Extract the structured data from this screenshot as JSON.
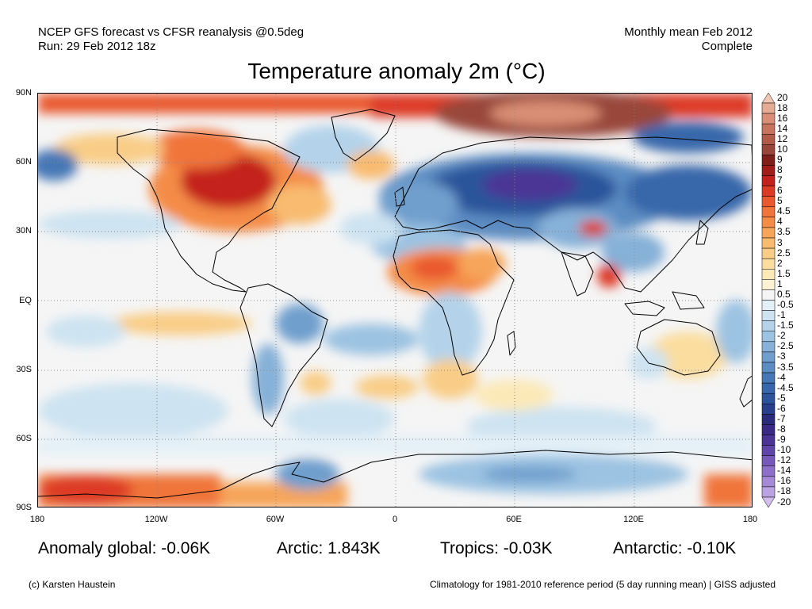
{
  "header": {
    "left_line1": "NCEP GFS forecast vs CFSR reanalysis @0.5deg",
    "left_line2": "Run: 29 Feb 2012 18z",
    "right_line1": "Monthly mean Feb 2012",
    "right_line2": "Complete"
  },
  "title": "Temperature anomaly 2m (°C)",
  "axes": {
    "lat_labels": [
      "90N",
      "60N",
      "30N",
      "EQ",
      "30S",
      "60S",
      "90S"
    ],
    "lon_labels": [
      "180",
      "120W",
      "60W",
      "0",
      "60E",
      "120E",
      "180"
    ]
  },
  "legend": {
    "labels": [
      "20",
      "18",
      "16",
      "14",
      "12",
      "10",
      "9",
      "8",
      "7",
      "6",
      "5",
      "4.5",
      "4",
      "3.5",
      "3",
      "2.5",
      "2",
      "1.5",
      "1",
      "0.5",
      "-0.5",
      "-1",
      "-1.5",
      "-2",
      "-2.5",
      "-3",
      "-3.5",
      "-4",
      "-4.5",
      "-5",
      "-6",
      "-7",
      "-8",
      "-9",
      "-10",
      "-12",
      "-14",
      "-16",
      "-18",
      "-20"
    ],
    "colors": [
      "#f1c6b4",
      "#e5ab93",
      "#d98f75",
      "#c8735c",
      "#b05b48",
      "#99463a",
      "#7e1f1a",
      "#a11d1a",
      "#c4201c",
      "#dd3a25",
      "#e9582f",
      "#f0743b",
      "#f48c47",
      "#f6a55a",
      "#f8bb70",
      "#f9cd87",
      "#fbdd9f",
      "#fce9b8",
      "#fdf3d2",
      "#f5f5f5",
      "#e4f0f7",
      "#cde3f1",
      "#b4d3ea",
      "#9cc3e2",
      "#86b1d8",
      "#709fcd",
      "#5b8cc2",
      "#4778b6",
      "#3767aa",
      "#2c549b",
      "#283f8b",
      "#2a2c7b",
      "#3a2a86",
      "#4b3495",
      "#5f45a7",
      "#7659b8",
      "#8e70c8",
      "#a588d6",
      "#bba2e2",
      "#d2bded"
    ]
  },
  "stats": {
    "global": "Anomaly global: -0.06K",
    "arctic": "Arctic: 1.843K",
    "tropics": "Tropics: -0.03K",
    "antarctic": "Antarctic: -0.10K"
  },
  "footer": {
    "left": "(c) Karsten Haustein",
    "right": "Climatology for 1981-2010 reference period (5 day running mean) | GISS adjusted"
  }
}
